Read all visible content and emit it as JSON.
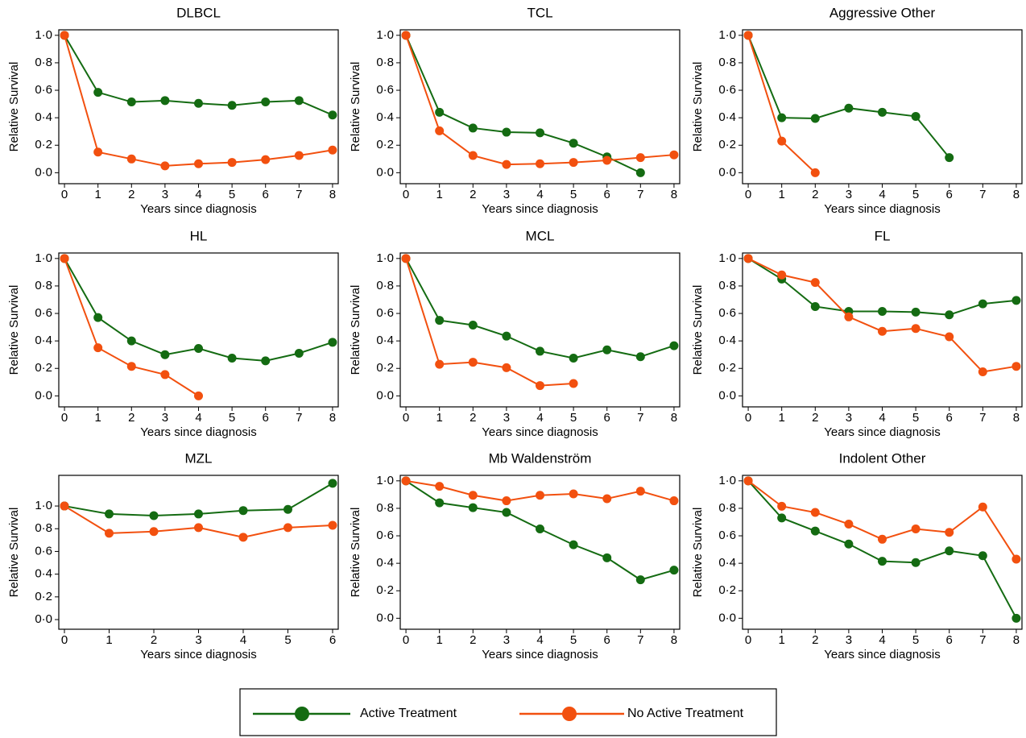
{
  "chart_data": [
    {
      "type": "line",
      "title": "DLBCL",
      "xlabel": "Years since diagnosis",
      "ylabel": "Relative Survival",
      "x": [
        0,
        1,
        2,
        3,
        4,
        5,
        6,
        7,
        8
      ],
      "xlim": [
        -0.17,
        8.17
      ],
      "xticks": [
        0,
        1,
        2,
        3,
        4,
        5,
        6,
        7,
        8
      ],
      "ylim": [
        -0.08,
        1.04
      ],
      "yticks": [
        {
          "value": 0,
          "label": "0·0"
        },
        {
          "value": 0.2,
          "label": "0·2"
        },
        {
          "value": 0.4,
          "label": "0·4"
        },
        {
          "value": 0.6,
          "label": "0·6"
        },
        {
          "value": 0.8,
          "label": "0·8"
        },
        {
          "value": 1,
          "label": "1·0"
        }
      ],
      "series": [
        {
          "name": "Active Treatment",
          "color": "#146b12",
          "values": [
            1.0,
            0.585,
            0.515,
            0.525,
            0.505,
            0.49,
            0.515,
            0.525,
            0.42
          ]
        },
        {
          "name": "No Active Treatment",
          "color": "#f2500f",
          "values": [
            1.0,
            0.15,
            0.1,
            0.05,
            0.065,
            0.075,
            0.095,
            0.125,
            0.165
          ]
        }
      ]
    },
    {
      "type": "line",
      "title": "TCL",
      "xlabel": "Years since diagnosis",
      "ylabel": "Relative Survival",
      "x": [
        0,
        1,
        2,
        3,
        4,
        5,
        6,
        7,
        8
      ],
      "xlim": [
        -0.17,
        8.17
      ],
      "xticks": [
        0,
        1,
        2,
        3,
        4,
        5,
        6,
        7,
        8
      ],
      "ylim": [
        -0.08,
        1.04
      ],
      "yticks": [
        {
          "value": 0,
          "label": "0·0"
        },
        {
          "value": 0.2,
          "label": "0·2"
        },
        {
          "value": 0.4,
          "label": "0·4"
        },
        {
          "value": 0.6,
          "label": "0·6"
        },
        {
          "value": 0.8,
          "label": "0·8"
        },
        {
          "value": 1,
          "label": "1·0"
        }
      ],
      "series": [
        {
          "name": "Active Treatment",
          "color": "#146b12",
          "values": [
            1.0,
            0.44,
            0.325,
            0.295,
            0.29,
            0.215,
            0.115,
            0.0,
            null
          ]
        },
        {
          "name": "No Active Treatment",
          "color": "#f2500f",
          "values": [
            1.0,
            0.305,
            0.125,
            0.06,
            0.065,
            0.075,
            0.09,
            0.11,
            0.13
          ]
        }
      ]
    },
    {
      "type": "line",
      "title": "Aggressive Other",
      "xlabel": "Years since diagnosis",
      "ylabel": "Relative Survival",
      "x": [
        0,
        1,
        2,
        3,
        4,
        5,
        6,
        7,
        8
      ],
      "xlim": [
        -0.17,
        8.17
      ],
      "xticks": [
        0,
        1,
        2,
        3,
        4,
        5,
        6,
        7,
        8
      ],
      "ylim": [
        -0.08,
        1.04
      ],
      "yticks": [
        {
          "value": 0,
          "label": "0·0"
        },
        {
          "value": 0.2,
          "label": "0·2"
        },
        {
          "value": 0.4,
          "label": "0·4"
        },
        {
          "value": 0.6,
          "label": "0·6"
        },
        {
          "value": 0.8,
          "label": "0·8"
        },
        {
          "value": 1,
          "label": "1·0"
        }
      ],
      "series": [
        {
          "name": "Active Treatment",
          "color": "#146b12",
          "values": [
            1.0,
            0.4,
            0.395,
            0.47,
            0.44,
            0.41,
            0.11,
            null,
            null
          ]
        },
        {
          "name": "No Active Treatment",
          "color": "#f2500f",
          "values": [
            1.0,
            0.23,
            0.0,
            null,
            null,
            null,
            null,
            null,
            null
          ]
        }
      ]
    },
    {
      "type": "line",
      "title": "HL",
      "xlabel": "Years since diagnosis",
      "ylabel": "Relative Survival",
      "x": [
        0,
        1,
        2,
        3,
        4,
        5,
        6,
        7,
        8
      ],
      "xlim": [
        -0.17,
        8.17
      ],
      "xticks": [
        0,
        1,
        2,
        3,
        4,
        5,
        6,
        7,
        8
      ],
      "ylim": [
        -0.08,
        1.04
      ],
      "yticks": [
        {
          "value": 0,
          "label": "0·0"
        },
        {
          "value": 0.2,
          "label": "0·2"
        },
        {
          "value": 0.4,
          "label": "0·4"
        },
        {
          "value": 0.6,
          "label": "0·6"
        },
        {
          "value": 0.8,
          "label": "0·8"
        },
        {
          "value": 1,
          "label": "1·0"
        }
      ],
      "series": [
        {
          "name": "Active Treatment",
          "color": "#146b12",
          "values": [
            1.0,
            0.57,
            0.4,
            0.3,
            0.345,
            0.275,
            0.255,
            0.31,
            0.39
          ]
        },
        {
          "name": "No Active Treatment",
          "color": "#f2500f",
          "values": [
            1.0,
            0.35,
            0.215,
            0.155,
            0.0,
            null,
            null,
            null,
            null
          ]
        }
      ]
    },
    {
      "type": "line",
      "title": "MCL",
      "xlabel": "Years since diagnosis",
      "ylabel": "Relative Survival",
      "x": [
        0,
        1,
        2,
        3,
        4,
        5,
        6,
        7,
        8
      ],
      "xlim": [
        -0.17,
        8.17
      ],
      "xticks": [
        0,
        1,
        2,
        3,
        4,
        5,
        6,
        7,
        8
      ],
      "ylim": [
        -0.08,
        1.04
      ],
      "yticks": [
        {
          "value": 0,
          "label": "0·0"
        },
        {
          "value": 0.2,
          "label": "0·2"
        },
        {
          "value": 0.4,
          "label": "0·4"
        },
        {
          "value": 0.6,
          "label": "0·6"
        },
        {
          "value": 0.8,
          "label": "0·8"
        },
        {
          "value": 1,
          "label": "1·0"
        }
      ],
      "series": [
        {
          "name": "Active Treatment",
          "color": "#146b12",
          "values": [
            1.0,
            0.55,
            0.515,
            0.435,
            0.325,
            0.275,
            0.335,
            0.285,
            0.365
          ]
        },
        {
          "name": "No Active Treatment",
          "color": "#f2500f",
          "values": [
            1.0,
            0.23,
            0.245,
            0.205,
            0.075,
            0.09,
            null,
            null,
            null
          ]
        }
      ]
    },
    {
      "type": "line",
      "title": "FL",
      "xlabel": "Years since diagnosis",
      "ylabel": "Relative Survival",
      "x": [
        0,
        1,
        2,
        3,
        4,
        5,
        6,
        7,
        8
      ],
      "xlim": [
        -0.17,
        8.17
      ],
      "xticks": [
        0,
        1,
        2,
        3,
        4,
        5,
        6,
        7,
        8
      ],
      "ylim": [
        -0.08,
        1.04
      ],
      "yticks": [
        {
          "value": 0,
          "label": "0·0"
        },
        {
          "value": 0.2,
          "label": "0·2"
        },
        {
          "value": 0.4,
          "label": "0·4"
        },
        {
          "value": 0.6,
          "label": "0·6"
        },
        {
          "value": 0.8,
          "label": "0·8"
        },
        {
          "value": 1,
          "label": "1·0"
        }
      ],
      "series": [
        {
          "name": "Active Treatment",
          "color": "#146b12",
          "values": [
            1.0,
            0.85,
            0.65,
            0.615,
            0.615,
            0.61,
            0.59,
            0.67,
            0.695
          ]
        },
        {
          "name": "No Active Treatment",
          "color": "#f2500f",
          "values": [
            1.0,
            0.88,
            0.825,
            0.575,
            0.47,
            0.49,
            0.43,
            0.175,
            0.215
          ]
        }
      ]
    },
    {
      "type": "line",
      "title": "MZL",
      "xlabel": "Years since diagnosis",
      "ylabel": "Relative Survival",
      "x": [
        0,
        1,
        2,
        3,
        4,
        5,
        6
      ],
      "xlim": [
        -0.126,
        6.126
      ],
      "xticks": [
        0,
        1,
        2,
        3,
        4,
        5,
        6
      ],
      "ylim": [
        -0.085,
        1.27
      ],
      "yticks": [
        {
          "value": 0,
          "label": "0·0"
        },
        {
          "value": 0.2,
          "label": "0·2"
        },
        {
          "value": 0.4,
          "label": "0·4"
        },
        {
          "value": 0.6,
          "label": "0·6"
        },
        {
          "value": 0.8,
          "label": "0·8"
        },
        {
          "value": 1,
          "label": "1·0"
        }
      ],
      "series": [
        {
          "name": "Active Treatment",
          "color": "#146b12",
          "values": [
            1.0,
            0.93,
            0.915,
            0.93,
            0.96,
            0.97,
            1.2
          ]
        },
        {
          "name": "No Active Treatment",
          "color": "#f2500f",
          "values": [
            1.0,
            0.76,
            0.775,
            0.81,
            0.725,
            0.81,
            0.83
          ]
        }
      ]
    },
    {
      "type": "line",
      "title": "Mb Waldenström",
      "xlabel": "Years since diagnosis",
      "ylabel": "Relative Survival",
      "x": [
        0,
        1,
        2,
        3,
        4,
        5,
        6,
        7,
        8
      ],
      "xlim": [
        -0.17,
        8.17
      ],
      "xticks": [
        0,
        1,
        2,
        3,
        4,
        5,
        6,
        7,
        8
      ],
      "ylim": [
        -0.08,
        1.04
      ],
      "yticks": [
        {
          "value": 0,
          "label": "0·0"
        },
        {
          "value": 0.2,
          "label": "0·2"
        },
        {
          "value": 0.4,
          "label": "0·4"
        },
        {
          "value": 0.6,
          "label": "0·6"
        },
        {
          "value": 0.8,
          "label": "0·8"
        },
        {
          "value": 1,
          "label": "1·0"
        }
      ],
      "series": [
        {
          "name": "Active Treatment",
          "color": "#146b12",
          "values": [
            1.0,
            0.84,
            0.805,
            0.77,
            0.65,
            0.535,
            0.44,
            0.28,
            0.35
          ]
        },
        {
          "name": "No Active Treatment",
          "color": "#f2500f",
          "values": [
            1.0,
            0.96,
            0.895,
            0.855,
            0.895,
            0.905,
            0.87,
            0.925,
            0.855
          ]
        }
      ]
    },
    {
      "type": "line",
      "title": "Indolent Other",
      "xlabel": "Years since diagnosis",
      "ylabel": "Relative Survival",
      "x": [
        0,
        1,
        2,
        3,
        4,
        5,
        6,
        7,
        8
      ],
      "xlim": [
        -0.17,
        8.17
      ],
      "xticks": [
        0,
        1,
        2,
        3,
        4,
        5,
        6,
        7,
        8
      ],
      "ylim": [
        -0.08,
        1.04
      ],
      "yticks": [
        {
          "value": 0,
          "label": "0·0"
        },
        {
          "value": 0.2,
          "label": "0·2"
        },
        {
          "value": 0.4,
          "label": "0·4"
        },
        {
          "value": 0.6,
          "label": "0·6"
        },
        {
          "value": 0.8,
          "label": "0·8"
        },
        {
          "value": 1,
          "label": "1·0"
        }
      ],
      "series": [
        {
          "name": "Active Treatment",
          "color": "#146b12",
          "values": [
            1.0,
            0.73,
            0.635,
            0.54,
            0.415,
            0.405,
            0.49,
            0.455,
            0.0
          ]
        },
        {
          "name": "No Active Treatment",
          "color": "#f2500f",
          "values": [
            1.0,
            0.815,
            0.77,
            0.685,
            0.575,
            0.65,
            0.625,
            0.81,
            0.43
          ]
        }
      ]
    }
  ]
}
